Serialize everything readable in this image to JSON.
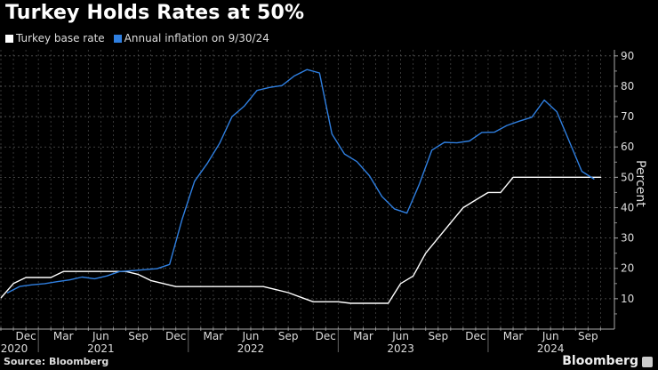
{
  "chart_data": {
    "type": "line",
    "title": "Turkey Holds Rates at 50%",
    "ylabel": "Percent",
    "ylim": [
      0,
      92
    ],
    "yticks": [
      10,
      20,
      30,
      40,
      50,
      60,
      70,
      80,
      90
    ],
    "grid": true,
    "legend_placement": "top-left",
    "x_start": "2020-10",
    "x_tick_labels": [
      {
        "month": "2020-12",
        "label": "Dec"
      },
      {
        "month": "2021-03",
        "label": "Mar"
      },
      {
        "month": "2021-06",
        "label": "Jun"
      },
      {
        "month": "2021-09",
        "label": "Sep"
      },
      {
        "month": "2021-12",
        "label": "Dec"
      },
      {
        "month": "2022-03",
        "label": "Mar"
      },
      {
        "month": "2022-06",
        "label": "Jun"
      },
      {
        "month": "2022-09",
        "label": "Sep"
      },
      {
        "month": "2022-12",
        "label": "Dec"
      },
      {
        "month": "2023-03",
        "label": "Mar"
      },
      {
        "month": "2023-06",
        "label": "Jun"
      },
      {
        "month": "2023-09",
        "label": "Sep"
      },
      {
        "month": "2023-12",
        "label": "Dec"
      },
      {
        "month": "2024-03",
        "label": "Mar"
      },
      {
        "month": "2024-06",
        "label": "Jun"
      },
      {
        "month": "2024-09",
        "label": "Sep"
      }
    ],
    "year_labels": [
      {
        "month": "2020-12",
        "label": "2020"
      },
      {
        "month": "2021-06",
        "label": "2021"
      },
      {
        "month": "2022-06",
        "label": "2022"
      },
      {
        "month": "2023-06",
        "label": "2023"
      },
      {
        "month": "2024-06",
        "label": "2024"
      }
    ],
    "series": [
      {
        "name": "Turkey base rate",
        "color": "#ffffff",
        "values": [
          10.25,
          15,
          17,
          17,
          17,
          19,
          19,
          19,
          19,
          19,
          19,
          18,
          16,
          15,
          14,
          14,
          14,
          14,
          14,
          14,
          14,
          14,
          13,
          12,
          10.5,
          9,
          9,
          9,
          8.5,
          8.5,
          8.5,
          8.5,
          15,
          17.5,
          25,
          30,
          35,
          40,
          42.5,
          45,
          45,
          50,
          50,
          50,
          50,
          50,
          50,
          50,
          50
        ]
      },
      {
        "name": "Annual inflation on 9/30/24",
        "color": "#2f7fe0",
        "values": [
          11.89,
          14.03,
          14.6,
          14.97,
          15.61,
          16.19,
          17.14,
          16.59,
          17.53,
          18.95,
          19.25,
          19.58,
          19.89,
          21.31,
          36.08,
          48.69,
          54.44,
          61.14,
          69.97,
          73.5,
          78.62,
          79.6,
          80.21,
          83.45,
          85.51,
          84.39,
          64.27,
          57.68,
          55.18,
          50.51,
          43.68,
          39.59,
          38.21,
          47.83,
          58.94,
          61.53,
          61.36,
          61.98,
          64.77,
          64.86,
          67.07,
          68.5,
          69.8,
          75.45,
          71.6,
          61.78,
          51.97,
          49.38
        ]
      }
    ]
  },
  "footer": {
    "source": "Source: Bloomberg",
    "brand": "Bloomberg"
  }
}
